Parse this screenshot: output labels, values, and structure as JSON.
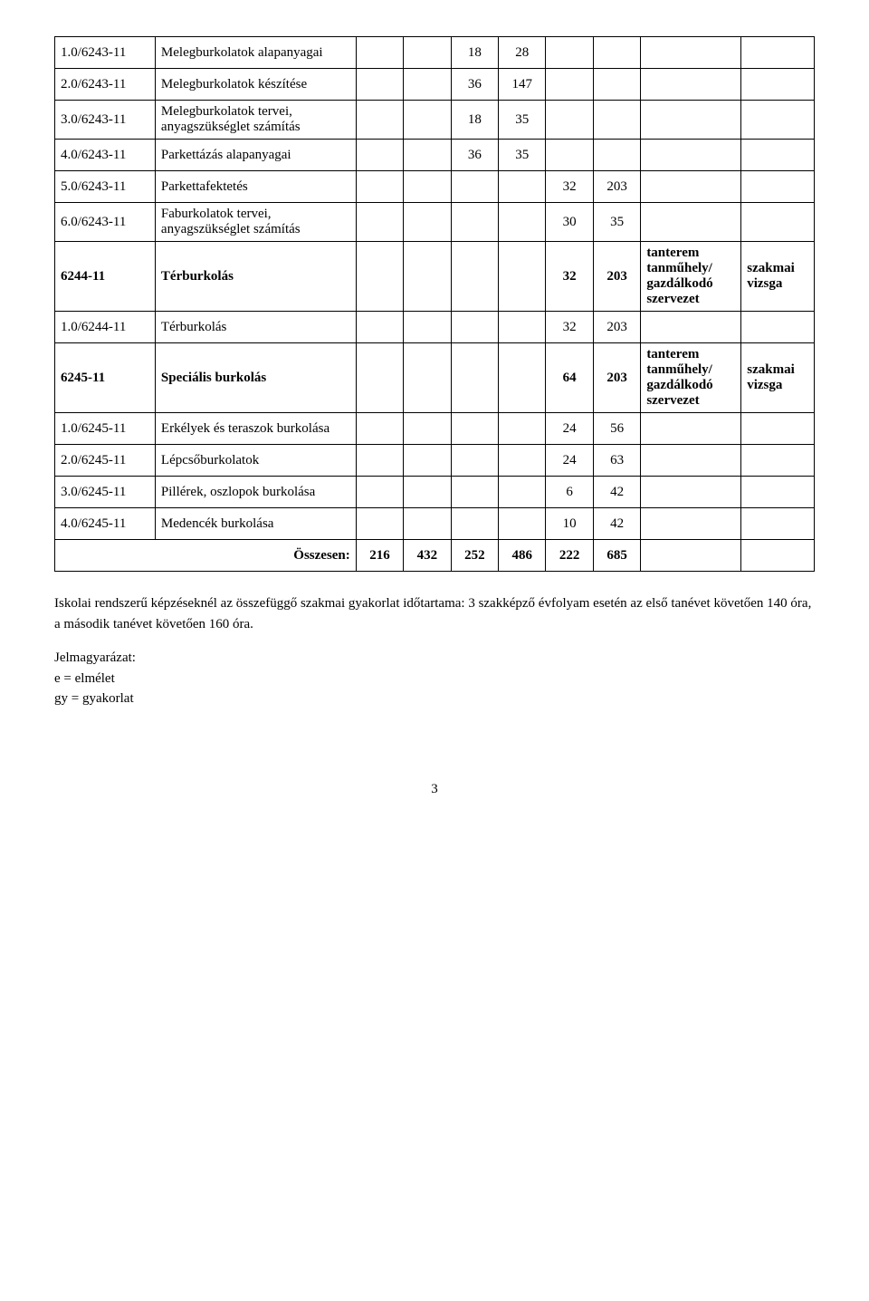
{
  "rows": [
    {
      "code": "1.0/6243-11",
      "desc": "Melegburkolatok alapanyagai",
      "c1": "",
      "c2": "",
      "c3": "18",
      "c4": "28",
      "c5": "",
      "c6": "",
      "loc": "",
      "exam": "",
      "bold": false
    },
    {
      "code": "2.0/6243-11",
      "desc": "Melegburkolatok készítése",
      "c1": "",
      "c2": "",
      "c3": "36",
      "c4": "147",
      "c5": "",
      "c6": "",
      "loc": "",
      "exam": "",
      "bold": false
    },
    {
      "code": "3.0/6243-11",
      "desc": "Melegburkolatok tervei, anyagszükséglet számítás",
      "c1": "",
      "c2": "",
      "c3": "18",
      "c4": "35",
      "c5": "",
      "c6": "",
      "loc": "",
      "exam": "",
      "bold": false
    },
    {
      "code": "4.0/6243-11",
      "desc": "Parkettázás alapanyagai",
      "c1": "",
      "c2": "",
      "c3": "36",
      "c4": "35",
      "c5": "",
      "c6": "",
      "loc": "",
      "exam": "",
      "bold": false
    },
    {
      "code": "5.0/6243-11",
      "desc": "Parkettafektetés",
      "c1": "",
      "c2": "",
      "c3": "",
      "c4": "",
      "c5": "32",
      "c6": "203",
      "loc": "",
      "exam": "",
      "bold": false
    },
    {
      "code": "6.0/6243-11",
      "desc": "Faburkolatok tervei, anyagszükséglet számítás",
      "c1": "",
      "c2": "",
      "c3": "",
      "c4": "",
      "c5": "30",
      "c6": "35",
      "loc": "",
      "exam": "",
      "bold": false
    },
    {
      "code": "6244-11",
      "desc": "Térburkolás",
      "c1": "",
      "c2": "",
      "c3": "",
      "c4": "",
      "c5": "32",
      "c6": "203",
      "loc": "tanterem tanműhely/ gazdálkodó szervezet",
      "exam": "szakmai vizsga",
      "bold": true
    },
    {
      "code": "1.0/6244-11",
      "desc": "Térburkolás",
      "c1": "",
      "c2": "",
      "c3": "",
      "c4": "",
      "c5": "32",
      "c6": "203",
      "loc": "",
      "exam": "",
      "bold": false
    },
    {
      "code": "6245-11",
      "desc": "Speciális burkolás",
      "c1": "",
      "c2": "",
      "c3": "",
      "c4": "",
      "c5": "64",
      "c6": "203",
      "loc": "tanterem tanműhely/ gazdálkodó szervezet",
      "exam": "szakmai vizsga",
      "bold": true
    },
    {
      "code": "1.0/6245-11",
      "desc": "Erkélyek és teraszok burkolása",
      "c1": "",
      "c2": "",
      "c3": "",
      "c4": "",
      "c5": "24",
      "c6": "56",
      "loc": "",
      "exam": "",
      "bold": false
    },
    {
      "code": "2.0/6245-11",
      "desc": "Lépcsőburkolatok",
      "c1": "",
      "c2": "",
      "c3": "",
      "c4": "",
      "c5": "24",
      "c6": "63",
      "loc": "",
      "exam": "",
      "bold": false
    },
    {
      "code": "3.0/6245-11",
      "desc": "Pillérek, oszlopok burkolása",
      "c1": "",
      "c2": "",
      "c3": "",
      "c4": "",
      "c5": "6",
      "c6": "42",
      "loc": "",
      "exam": "",
      "bold": false
    },
    {
      "code": "4.0/6245-11",
      "desc": "Medencék burkolása",
      "c1": "",
      "c2": "",
      "c3": "",
      "c4": "",
      "c5": "10",
      "c6": "42",
      "loc": "",
      "exam": "",
      "bold": false
    }
  ],
  "sum": {
    "label": "Összesen:",
    "c1": "216",
    "c2": "432",
    "c3": "252",
    "c4": "486",
    "c5": "222",
    "c6": "685"
  },
  "footer": {
    "p1": "Iskolai rendszerű képzéseknél az összefüggő szakmai gyakorlat időtartama: 3 szakképző évfolyam esetén az első tanévet követően 140 óra, a második tanévet követően 160 óra.",
    "legend_title": "Jelmagyarázat:",
    "legend_e": "e = elmélet",
    "legend_gy": "gy = gyakorlat"
  },
  "page_number": "3"
}
